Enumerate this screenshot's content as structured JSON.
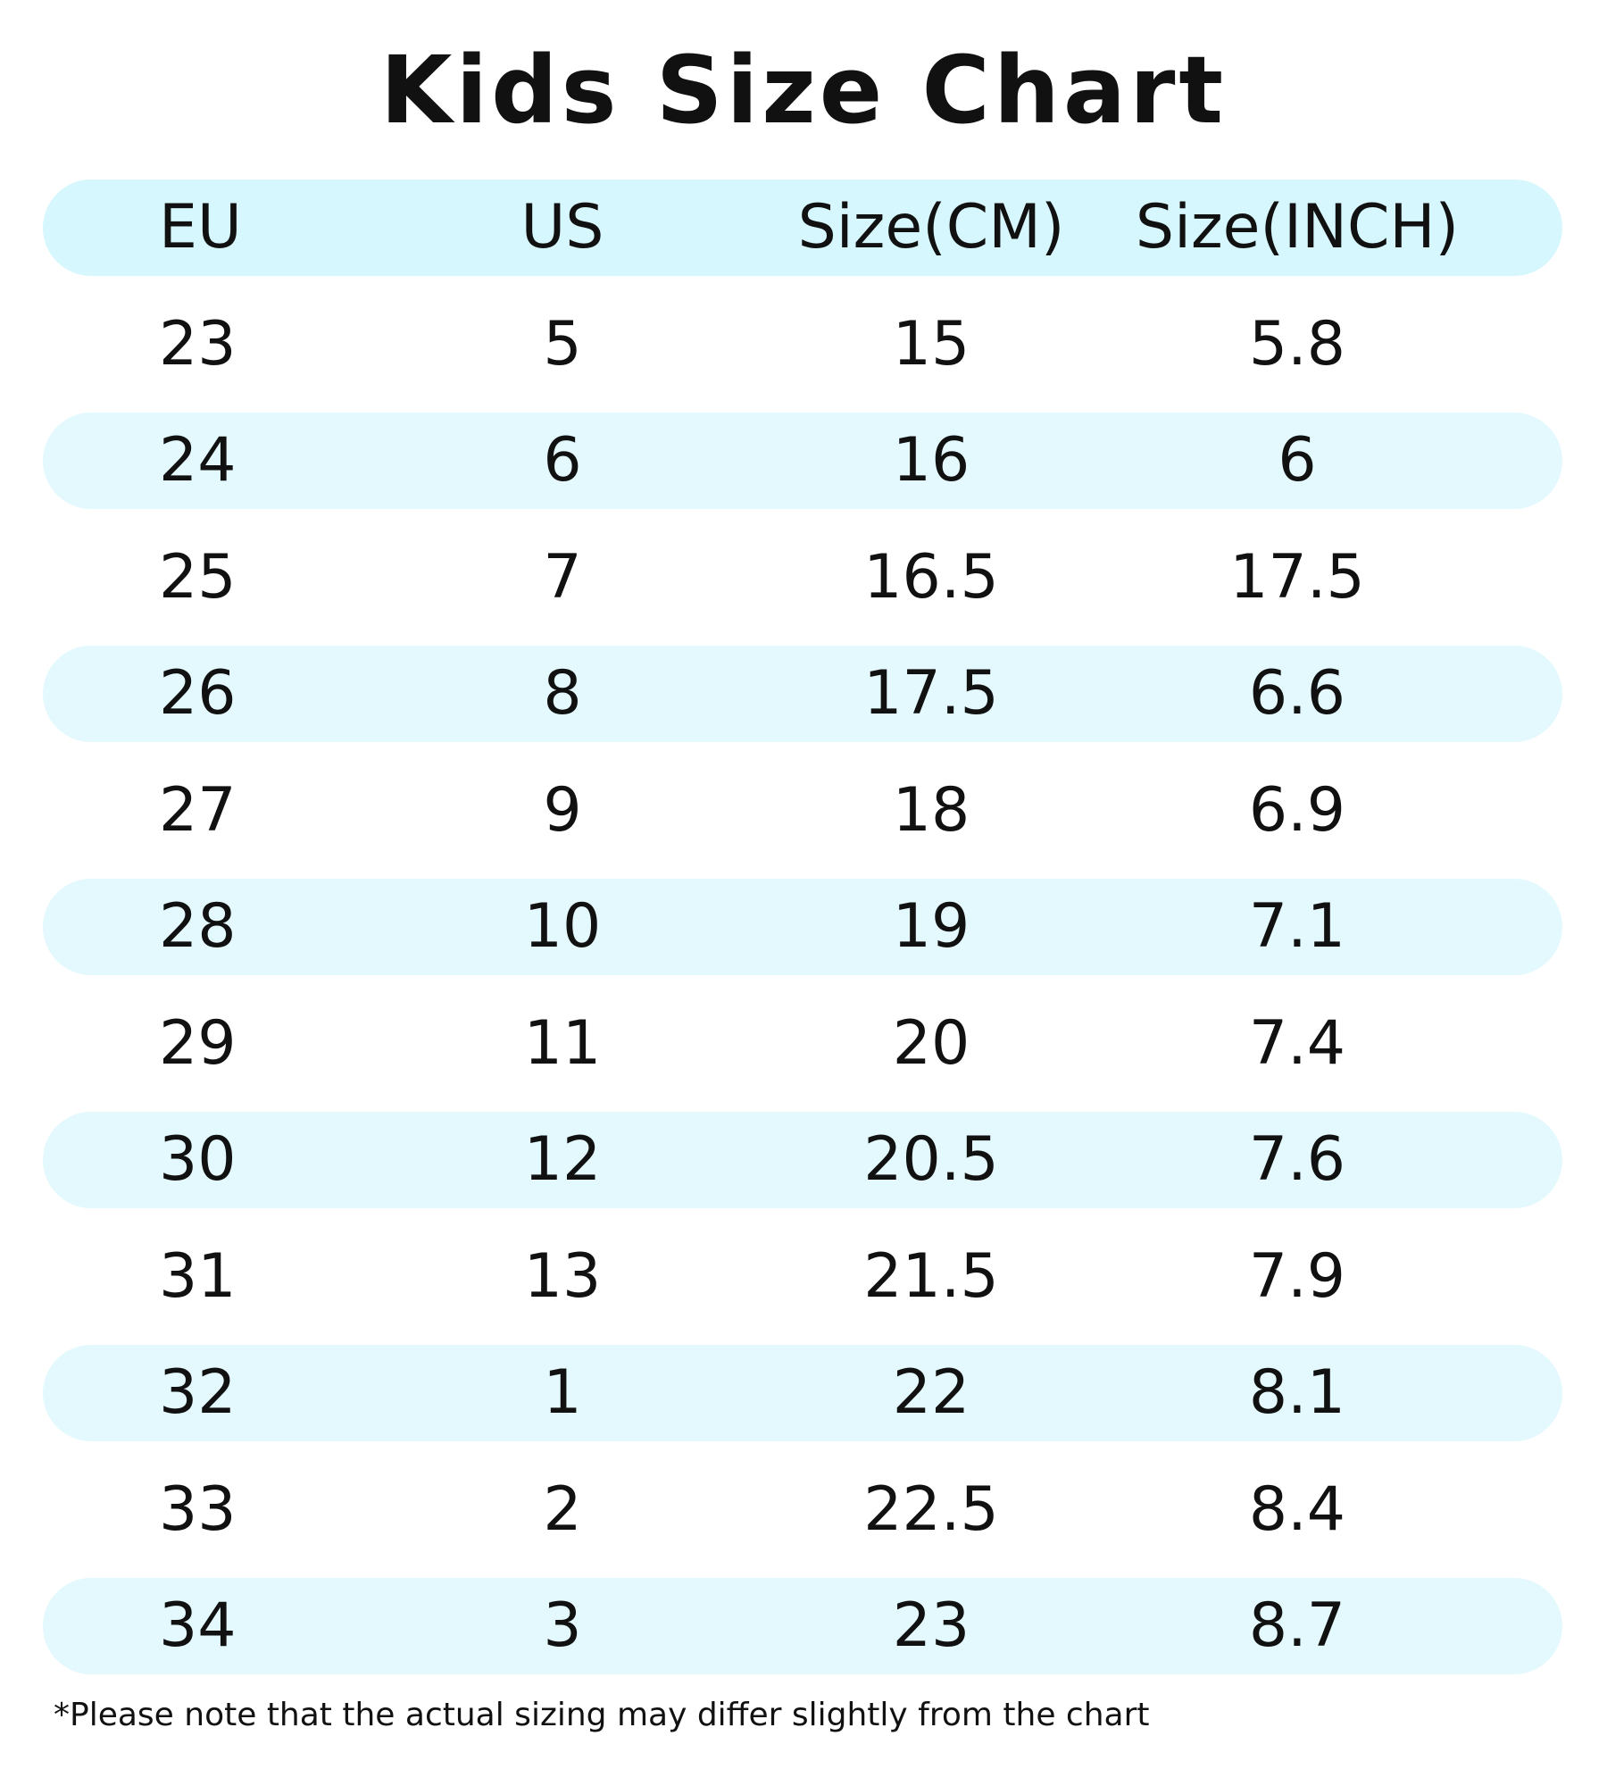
{
  "title": "Kids Size Chart",
  "table": {
    "header": [
      "EU",
      "US",
      "Size(CM)",
      "Size(INCH)"
    ],
    "rows": [
      [
        "23",
        "5",
        "15",
        "5.8"
      ],
      [
        "24",
        "6",
        "16",
        "6"
      ],
      [
        "25",
        "7",
        "16.5",
        "17.5"
      ],
      [
        "26",
        "8",
        "17.5",
        "6.6"
      ],
      [
        "27",
        "9",
        "18",
        "6.9"
      ],
      [
        "28",
        "10",
        "19",
        "7.1"
      ],
      [
        "29",
        "11",
        "20",
        "7.4"
      ],
      [
        "30",
        "12",
        "20.5",
        "7.6"
      ],
      [
        "31",
        "13",
        "21.5",
        "7.9"
      ],
      [
        "32",
        "1",
        "22",
        "8.1"
      ],
      [
        "33",
        "2",
        "22.5",
        "8.4"
      ],
      [
        "34",
        "3",
        "23",
        "8.7"
      ]
    ]
  },
  "note": "*Please note that the actual sizing may differ slightly from the chart"
}
